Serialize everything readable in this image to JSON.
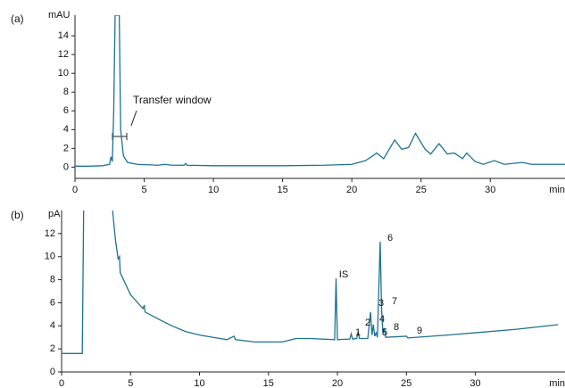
{
  "chart_data": [
    {
      "type": "line",
      "panel_label": "(a)",
      "y_label": "mAU",
      "x_label": "min",
      "annotation": "Transfer window",
      "xlim": [
        0,
        35.4
      ],
      "ylim": [
        -1.2,
        16.2
      ],
      "xticks": [
        0,
        5,
        10,
        15,
        20,
        25,
        30
      ],
      "yticks": [
        0,
        2,
        4,
        6,
        8,
        10,
        12,
        14
      ],
      "series": [
        {
          "color": "#1d7391",
          "x": [
            0,
            1,
            2,
            2.5,
            2.6,
            2.7,
            2.8,
            2.9,
            3.05,
            3.2,
            3.3,
            3.5,
            3.8,
            4.5,
            6,
            6.5,
            7,
            7.9,
            8,
            8.1,
            10,
            15,
            18,
            20,
            21,
            21.8,
            22.3,
            23.1,
            23.6,
            24.1,
            24.6,
            25.3,
            25.7,
            26.3,
            26.9,
            27.4,
            28,
            28.3,
            28.9,
            29.5,
            30.3,
            31,
            32.3,
            33,
            35.4
          ],
          "values": [
            0.1,
            0.1,
            0.15,
            0.3,
            1.1,
            0.6,
            6,
            16.2,
            16.2,
            16.2,
            4,
            1.2,
            0.5,
            0.3,
            0.2,
            0.3,
            0.2,
            0.2,
            0.4,
            0.2,
            0.15,
            0.15,
            0.2,
            0.3,
            0.7,
            1.5,
            0.9,
            2.9,
            1.9,
            2.1,
            3.6,
            1.9,
            1.4,
            2.5,
            1.4,
            1.5,
            0.9,
            1.5,
            0.6,
            0.3,
            0.7,
            0.3,
            0.5,
            0.3,
            0.3
          ]
        }
      ]
    },
    {
      "type": "line",
      "panel_label": "(b)",
      "y_label": "pA",
      "x_label": "min",
      "peak_labels": [
        "IS",
        "1",
        "2",
        "3",
        "4",
        "5",
        "6",
        "7",
        "8",
        "9"
      ],
      "xlim": [
        0,
        36.5
      ],
      "ylim": [
        0,
        14
      ],
      "xticks": [
        0,
        5,
        10,
        15,
        20,
        25,
        30
      ],
      "yticks": [
        0,
        2,
        4,
        6,
        8,
        10,
        12
      ],
      "series": [
        {
          "color": "#1d7391",
          "x": [
            0,
            1,
            1.5,
            1.6,
            2.6,
            3.7,
            3.9,
            4.1,
            4.2,
            4.25,
            5,
            5.9,
            6,
            6.05,
            7,
            8,
            9,
            10,
            11,
            12,
            12.5,
            12.6,
            14,
            16,
            17,
            18,
            19.8,
            19.9,
            20,
            20.9,
            21,
            21.1,
            21.4,
            21.5,
            21.6,
            22.2,
            22.4,
            22.5,
            22.6,
            22.7,
            22.8,
            22.9,
            23.1,
            23.2,
            23.3,
            23.4,
            23.5,
            25,
            25.1,
            28,
            30,
            33,
            36
          ],
          "values": [
            1.6,
            1.6,
            1.6,
            14,
            null,
            14,
            11.5,
            9.8,
            10,
            8.6,
            6.7,
            5.5,
            5.8,
            5.2,
            4.6,
            4,
            3.5,
            3.2,
            3,
            2.8,
            3.1,
            2.8,
            2.6,
            2.6,
            2.9,
            2.9,
            2.8,
            8.1,
            2.8,
            2.85,
            3.3,
            2.85,
            2.9,
            3.5,
            2.9,
            2.9,
            5.2,
            3.2,
            4.1,
            3.1,
            3.4,
            3.0,
            11.3,
            5.4,
            3.3,
            3.8,
            3.0,
            3.1,
            2.95,
            3.2,
            3.4,
            3.7,
            4.1
          ]
        }
      ]
    }
  ]
}
